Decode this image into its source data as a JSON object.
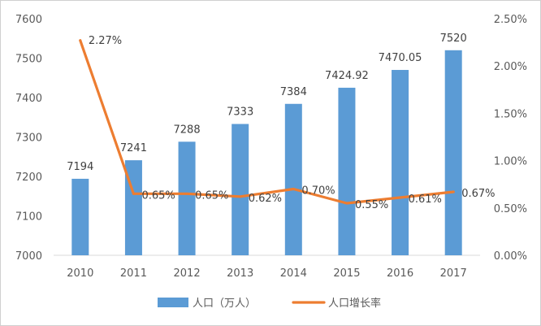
{
  "chart_data": {
    "type": "bar+line",
    "categories": [
      "2010",
      "2011",
      "2012",
      "2013",
      "2014",
      "2015",
      "2016",
      "2017"
    ],
    "series": [
      {
        "name": "人口（万人）",
        "type": "bar",
        "axis": "left",
        "color": "#5b9bd5",
        "values": [
          7194,
          7241,
          7288,
          7333,
          7384,
          7424.92,
          7470.05,
          7520
        ],
        "labels": [
          "7194",
          "7241",
          "7288",
          "7333",
          "7384",
          "7424.92",
          "7470.05",
          "7520"
        ]
      },
      {
        "name": "人口增长率",
        "type": "line",
        "axis": "right",
        "color": "#ed7d31",
        "values": [
          2.27,
          0.65,
          0.65,
          0.62,
          0.7,
          0.55,
          0.61,
          0.67
        ],
        "labels": [
          "2.27%",
          "0.65%",
          "0.65%",
          "0.62%",
          "0.70%",
          "0.55%",
          "0.61%",
          "0.67%"
        ]
      }
    ],
    "y_left": {
      "range": [
        7000,
        7600
      ],
      "ticks": [
        "7000",
        "7100",
        "7200",
        "7300",
        "7400",
        "7500",
        "7600"
      ]
    },
    "y_right": {
      "range": [
        0,
        2.5
      ],
      "ticks": [
        "0.00%",
        "0.50%",
        "1.00%",
        "1.50%",
        "2.00%",
        "2.50%"
      ]
    },
    "grid": false,
    "legend_position": "bottom"
  }
}
